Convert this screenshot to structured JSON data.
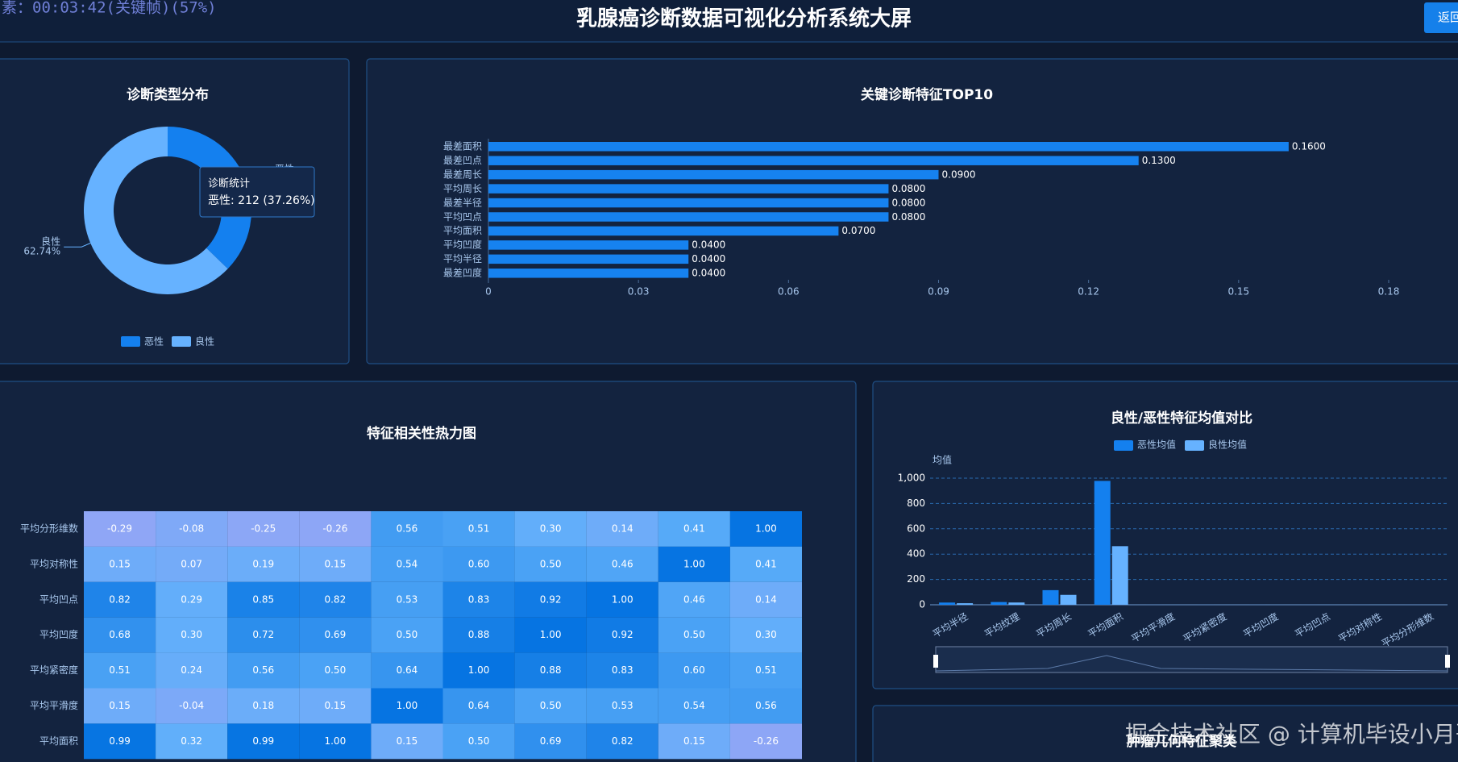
{
  "header": {
    "overlay": "素：00:03:42(关键帧)(57%)",
    "title": "乳腺癌诊断数据可视化分析系统大屏",
    "button": "返回"
  },
  "bottom_panel_title": "肿瘤几何特征聚类",
  "watermark": "掘金技术社区 @ 计算机毕设小月哥",
  "chart_data": [
    {
      "type": "pie",
      "title": "诊断类型分布",
      "categories": [
        "恶性",
        "良性"
      ],
      "values": [
        37.26,
        62.74
      ],
      "value_labels": [
        "37.26%",
        "62.74%"
      ],
      "colors": [
        "#1480ef",
        "#66b2ff"
      ],
      "legend": "bottom",
      "tooltip": {
        "title": "诊断统计",
        "text": "恶性: 212 (37.26%)"
      }
    },
    {
      "type": "hbar",
      "title": "关键诊断特征TOP10",
      "categories": [
        "最差面积",
        "最差凹点",
        "最差周长",
        "平均周长",
        "最差半径",
        "平均凹点",
        "平均面积",
        "平均凹度",
        "平均半径",
        "最差凹度"
      ],
      "values": [
        0.16,
        0.13,
        0.09,
        0.08,
        0.08,
        0.08,
        0.07,
        0.04,
        0.04,
        0.04
      ],
      "value_labels": [
        "0.1600",
        "0.1300",
        "0.0900",
        "0.0800",
        "0.0800",
        "0.0800",
        "0.0700",
        "0.0400",
        "0.0400",
        "0.0400"
      ],
      "color": "#1682f0",
      "xlim": [
        0,
        0.18
      ],
      "xticks": [
        0,
        0.03,
        0.06,
        0.09,
        0.12,
        0.15,
        0.18
      ]
    },
    {
      "type": "heatmap",
      "title": "特征相关性热力图",
      "y_categories": [
        "平均分形维数",
        "平均对称性",
        "平均凹点",
        "平均凹度",
        "平均紧密度",
        "平均平滑度",
        "平均面积"
      ],
      "values": [
        [
          -0.29,
          -0.08,
          -0.25,
          -0.26,
          0.56,
          0.51,
          0.3,
          0.14,
          0.41,
          1.0
        ],
        [
          0.15,
          0.07,
          0.19,
          0.15,
          0.54,
          0.6,
          0.5,
          0.46,
          1.0,
          0.41
        ],
        [
          0.82,
          0.29,
          0.85,
          0.82,
          0.53,
          0.83,
          0.92,
          1.0,
          0.46,
          0.14
        ],
        [
          0.68,
          0.3,
          0.72,
          0.69,
          0.5,
          0.88,
          1.0,
          0.92,
          0.5,
          0.3
        ],
        [
          0.51,
          0.24,
          0.56,
          0.5,
          0.64,
          1.0,
          0.88,
          0.83,
          0.6,
          0.51
        ],
        [
          0.15,
          -0.04,
          0.18,
          0.15,
          1.0,
          0.64,
          0.5,
          0.53,
          0.54,
          0.56
        ],
        [
          0.99,
          0.32,
          0.99,
          1.0,
          0.15,
          0.5,
          0.69,
          0.82,
          0.15,
          -0.26
        ]
      ],
      "value_labels": [
        [
          "-0.29",
          "-0.08",
          "-0.25",
          "-0.26",
          "0.56",
          "0.51",
          "0.30",
          "0.14",
          "0.41",
          "1.00"
        ],
        [
          "0.15",
          "0.07",
          "0.19",
          "0.15",
          "0.54",
          "0.60",
          "0.50",
          "0.46",
          "1.00",
          "0.41"
        ],
        [
          "0.82",
          "0.29",
          "0.85",
          "0.82",
          "0.53",
          "0.83",
          "0.92",
          "1.00",
          "0.46",
          "0.14"
        ],
        [
          "0.68",
          "0.30",
          "0.72",
          "0.69",
          "0.50",
          "0.88",
          "1.00",
          "0.92",
          "0.50",
          "0.30"
        ],
        [
          "0.51",
          "0.24",
          "0.56",
          "0.50",
          "0.64",
          "1.00",
          "0.88",
          "0.83",
          "0.60",
          "0.51"
        ],
        [
          "0.15",
          "-0.04",
          "0.18",
          "0.15",
          "1.00",
          "0.64",
          "0.50",
          "0.53",
          "0.54",
          "0.56"
        ],
        [
          "0.99",
          "0.32",
          "0.99",
          "1.00",
          "0.15",
          "0.50",
          "0.69",
          "0.82",
          "0.15",
          "-0.26"
        ]
      ],
      "colors": [
        "#8fa6f6",
        "#5eaffa",
        "#0674e2"
      ]
    },
    {
      "type": "grouped_bar",
      "title": "良性/恶性特征均值对比",
      "y_label": "均值",
      "categories": [
        "平均半径",
        "平均纹理",
        "平均周长",
        "平均面积",
        "平均平滑度",
        "平均紧密度",
        "平均凹度",
        "平均凹点",
        "平均对称性",
        "平均分形维数"
      ],
      "series": [
        {
          "name": "恶性均值",
          "color": "#1480ef",
          "values": [
            17.46,
            21.6,
            115.4,
            978.4,
            0.103,
            0.145,
            0.161,
            0.088,
            0.193,
            0.063
          ]
        },
        {
          "name": "良性均值",
          "color": "#66b2ff",
          "values": [
            12.15,
            17.9,
            78.1,
            462.8,
            0.092,
            0.08,
            0.046,
            0.026,
            0.174,
            0.063
          ]
        }
      ],
      "ylim": [
        0,
        1000
      ],
      "yticks": [
        0,
        200,
        400,
        600,
        800,
        {
          "value": 1000,
          "label": "1,000"
        }
      ],
      "grid": true,
      "legend": "top"
    }
  ]
}
